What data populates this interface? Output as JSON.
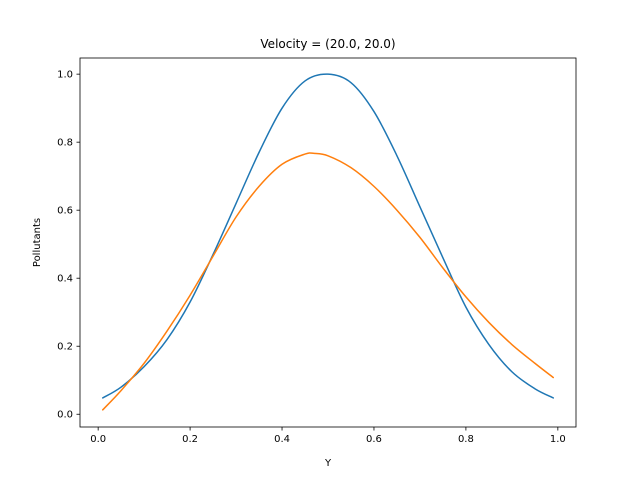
{
  "chart_data": {
    "type": "line",
    "title": "Velocity = (20.0, 20.0)",
    "xlabel": "Y",
    "ylabel": "Pollutants",
    "xlim": [
      -0.0395,
      1.0395
    ],
    "ylim": [
      -0.0375,
      1.0475
    ],
    "xticks": [
      "0.0",
      "0.2",
      "0.4",
      "0.6",
      "0.8",
      "1.0"
    ],
    "xtick_values": [
      0.0,
      0.2,
      0.4,
      0.6,
      0.8,
      1.0
    ],
    "yticks": [
      "0.0",
      "0.2",
      "0.4",
      "0.6",
      "0.8",
      "1.0"
    ],
    "ytick_values": [
      0.0,
      0.2,
      0.4,
      0.6,
      0.8,
      1.0
    ],
    "grid": false,
    "legend": "none",
    "series": [
      {
        "color": "#1f77b4",
        "x": [
          0.01,
          0.05,
          0.1,
          0.15,
          0.2,
          0.25,
          0.3,
          0.35,
          0.4,
          0.45,
          0.5,
          0.55,
          0.6,
          0.65,
          0.7,
          0.75,
          0.8,
          0.85,
          0.9,
          0.95,
          0.99
        ],
        "y": [
          0.048,
          0.08,
          0.14,
          0.22,
          0.33,
          0.47,
          0.62,
          0.77,
          0.9,
          0.98,
          1.0,
          0.975,
          0.89,
          0.76,
          0.61,
          0.46,
          0.315,
          0.205,
          0.125,
          0.075,
          0.048
        ]
      },
      {
        "color": "#ff7f0e",
        "x": [
          0.01,
          0.05,
          0.1,
          0.15,
          0.2,
          0.25,
          0.3,
          0.35,
          0.4,
          0.45,
          0.47,
          0.5,
          0.55,
          0.6,
          0.65,
          0.7,
          0.75,
          0.8,
          0.85,
          0.9,
          0.95,
          0.99
        ],
        "y": [
          0.013,
          0.07,
          0.15,
          0.245,
          0.35,
          0.465,
          0.58,
          0.67,
          0.735,
          0.765,
          0.767,
          0.76,
          0.725,
          0.67,
          0.6,
          0.52,
          0.43,
          0.345,
          0.27,
          0.205,
          0.15,
          0.108
        ]
      }
    ]
  }
}
